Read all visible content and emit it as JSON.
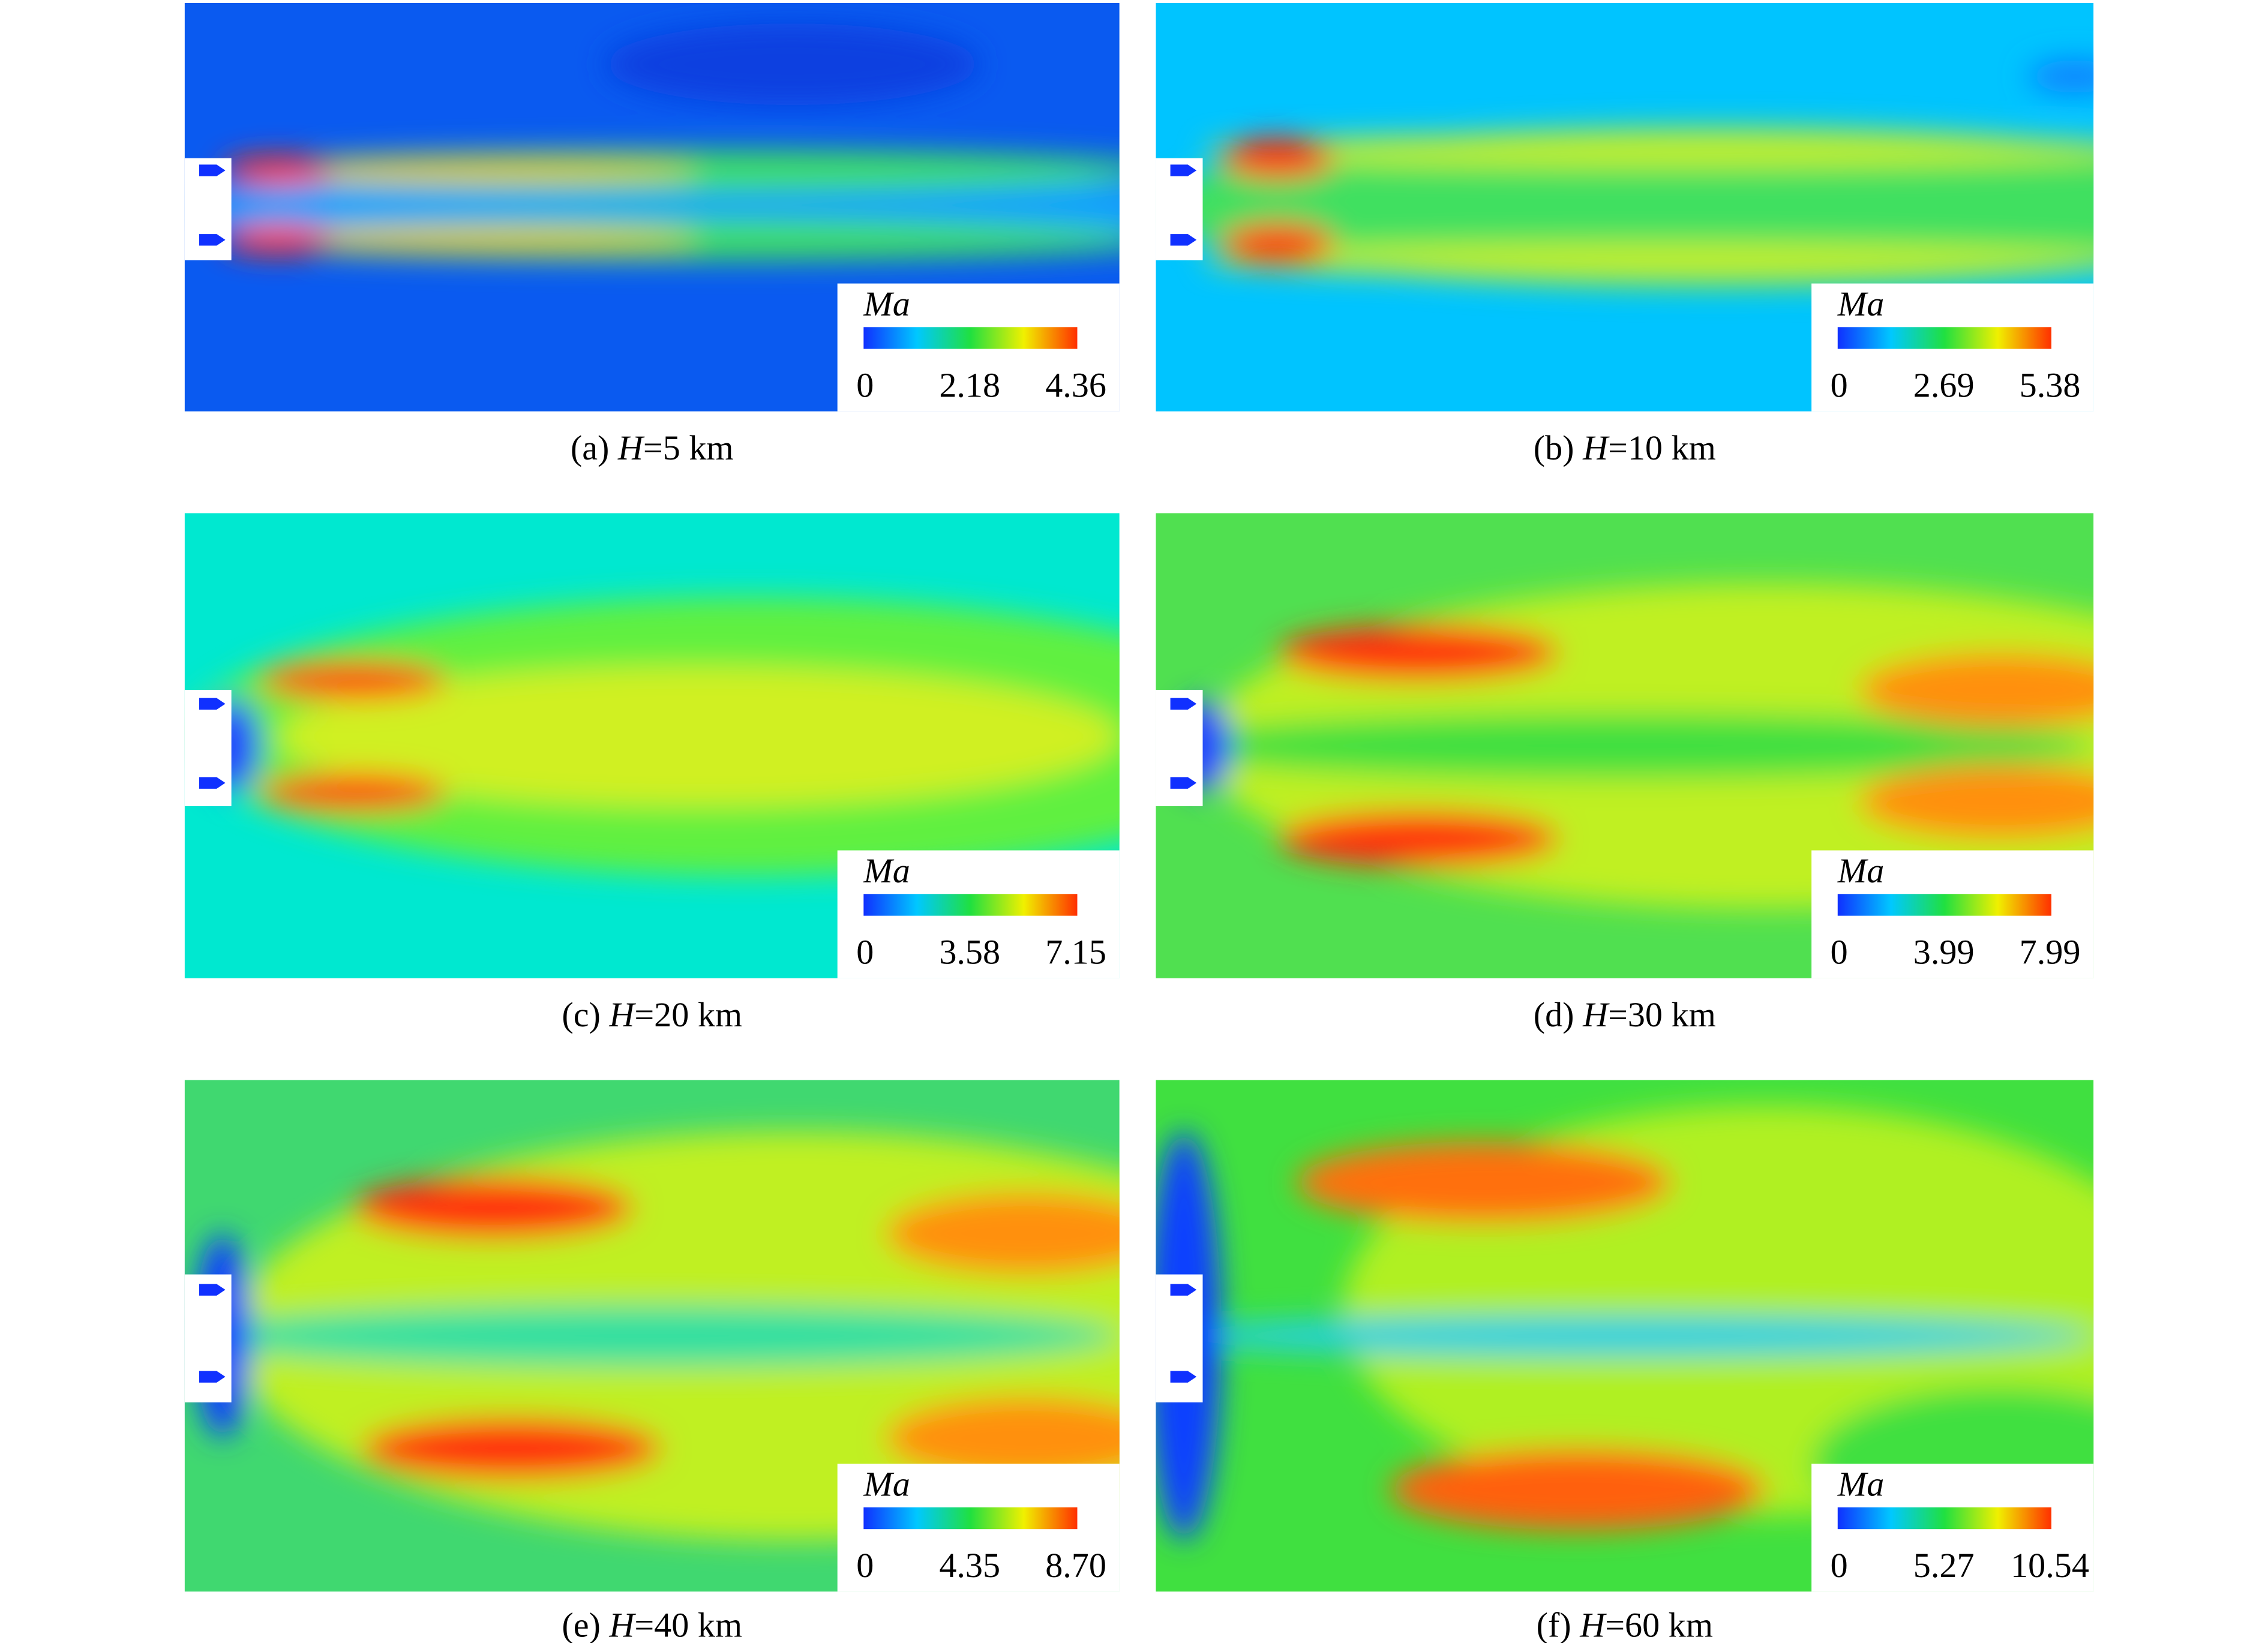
{
  "panels": [
    {
      "caption": {
        "label": "(a)",
        "var": "H",
        "rest": "=5 km"
      },
      "legend": {
        "title": "Ma",
        "ticks": [
          "0",
          "2.18",
          "4.36"
        ]
      }
    },
    {
      "caption": {
        "label": "(b)",
        "var": "H",
        "rest": "=10 km"
      },
      "legend": {
        "title": "Ma",
        "ticks": [
          "0",
          "2.69",
          "5.38"
        ]
      }
    },
    {
      "caption": {
        "label": "(c)",
        "var": "H",
        "rest": "=20 km"
      },
      "legend": {
        "title": "Ma",
        "ticks": [
          "0",
          "3.58",
          "7.15"
        ]
      }
    },
    {
      "caption": {
        "label": "(d)",
        "var": "H",
        "rest": "=30 km"
      },
      "legend": {
        "title": "Ma",
        "ticks": [
          "0",
          "3.99",
          "7.99"
        ]
      }
    },
    {
      "caption": {
        "label": "(e)",
        "var": "H",
        "rest": "=40 km"
      },
      "legend": {
        "title": "Ma",
        "ticks": [
          "0",
          "4.35",
          "8.70"
        ]
      }
    },
    {
      "caption": {
        "label": "(f)",
        "var": "H",
        "rest": "=60 km"
      },
      "legend": {
        "title": "Ma",
        "ticks": [
          "0",
          "5.27",
          "10.54"
        ]
      }
    }
  ]
}
